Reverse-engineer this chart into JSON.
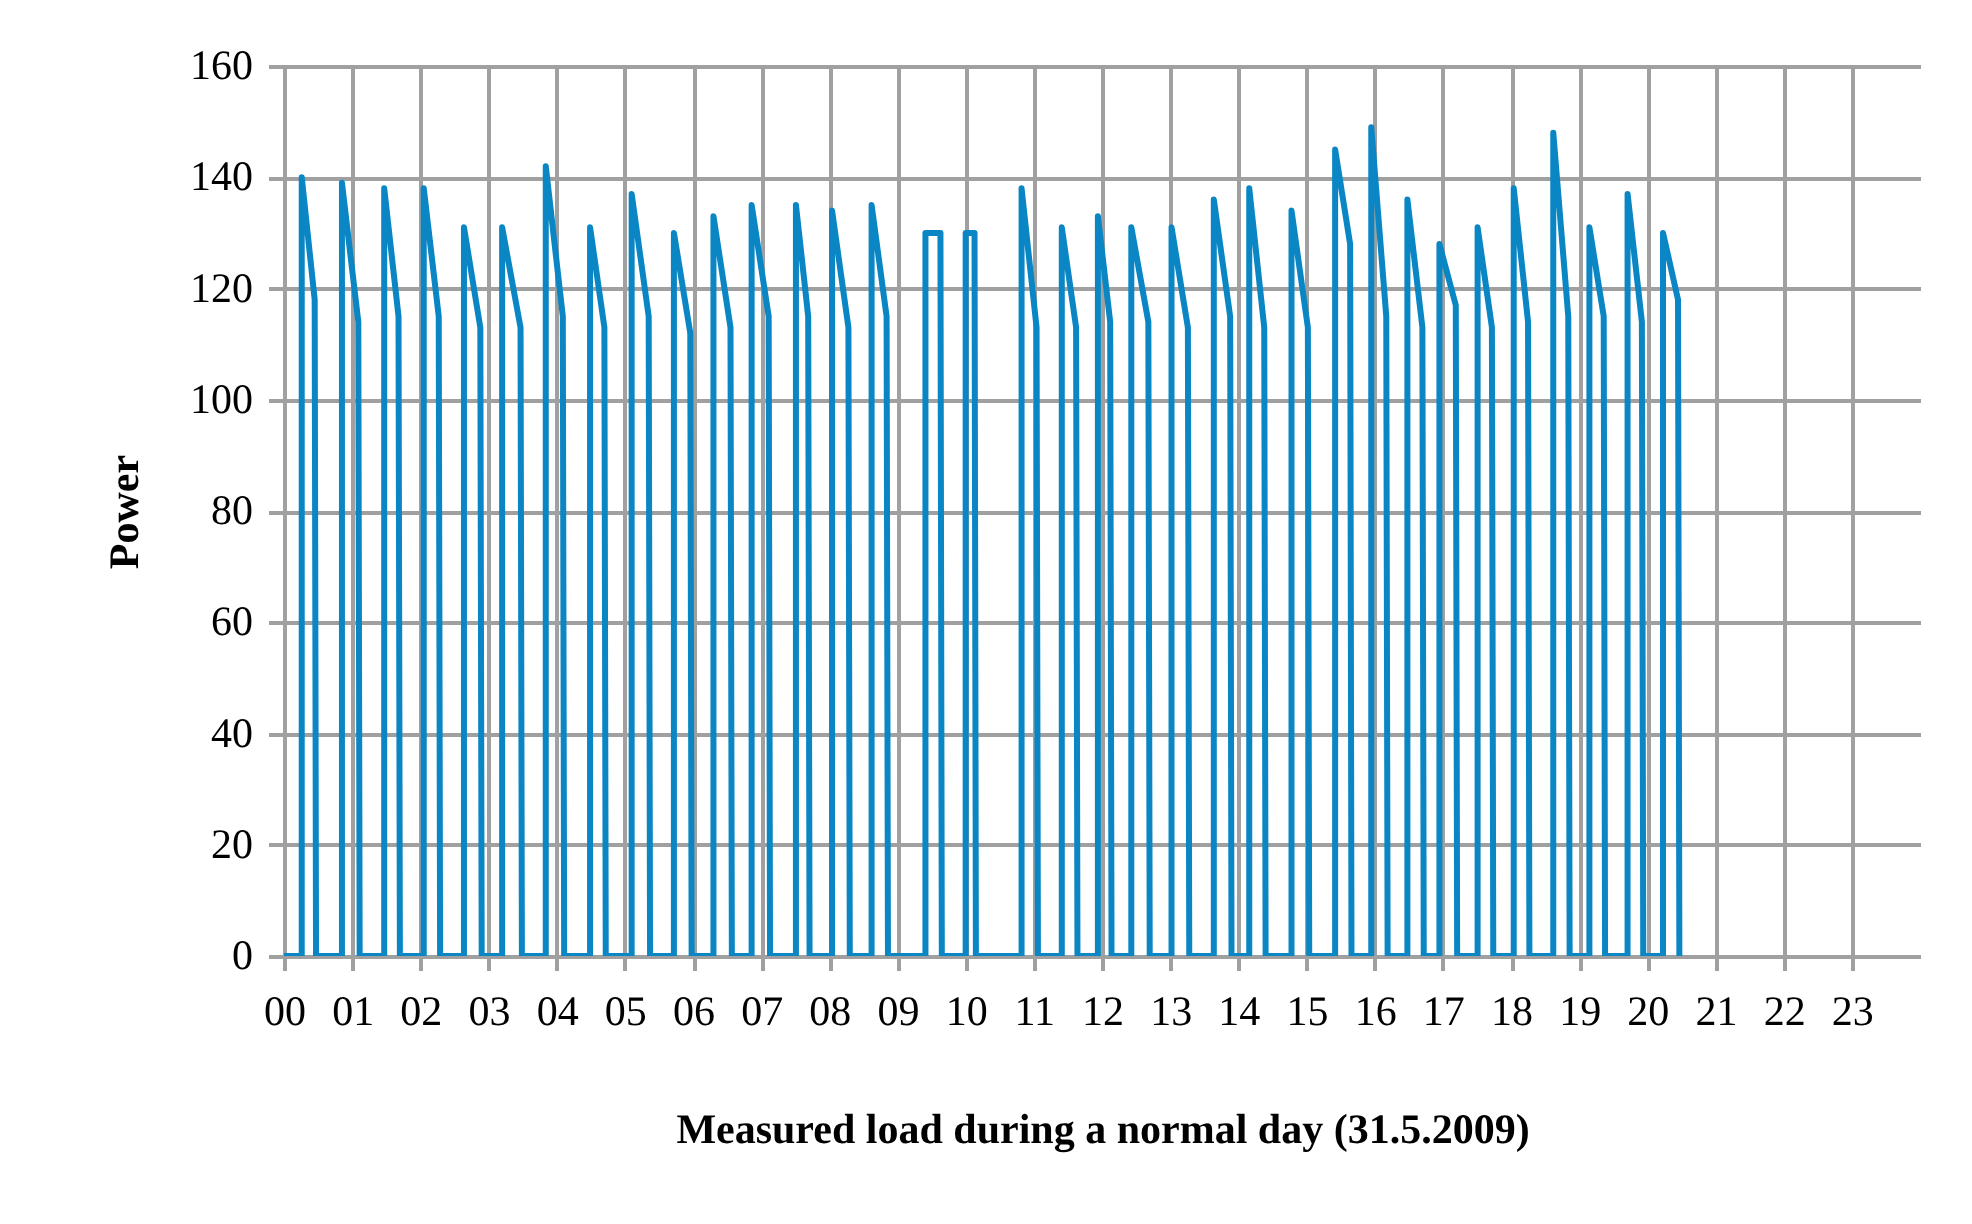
{
  "chart_data": {
    "type": "line",
    "xlabel": "Measured load during a normal day (31.5.2009)",
    "ylabel": "Power",
    "xlim": [
      0,
      24
    ],
    "xticks": [
      {
        "value": 0,
        "label": "00"
      },
      {
        "value": 1,
        "label": "01"
      },
      {
        "value": 2,
        "label": "02"
      },
      {
        "value": 3,
        "label": "03"
      },
      {
        "value": 4,
        "label": "04"
      },
      {
        "value": 5,
        "label": "05"
      },
      {
        "value": 6,
        "label": "06"
      },
      {
        "value": 7,
        "label": "07"
      },
      {
        "value": 8,
        "label": "08"
      },
      {
        "value": 9,
        "label": "09"
      },
      {
        "value": 10,
        "label": "10"
      },
      {
        "value": 11,
        "label": "11"
      },
      {
        "value": 12,
        "label": "12"
      },
      {
        "value": 13,
        "label": "13"
      },
      {
        "value": 14,
        "label": "14"
      },
      {
        "value": 15,
        "label": "15"
      },
      {
        "value": 16,
        "label": "16"
      },
      {
        "value": 17,
        "label": "17"
      },
      {
        "value": 18,
        "label": "18"
      },
      {
        "value": 19,
        "label": "19"
      },
      {
        "value": 20,
        "label": "20"
      },
      {
        "value": 21,
        "label": "21"
      },
      {
        "value": 22,
        "label": "22"
      },
      {
        "value": 23,
        "label": "23"
      }
    ],
    "ylim": [
      0,
      160
    ],
    "yticks": [
      0,
      20,
      40,
      60,
      80,
      100,
      120,
      140,
      160
    ],
    "grid": true,
    "series": [
      {
        "color": "#0a86c4",
        "x": [
          0,
          0.26,
          0.26,
          0.45,
          0.47,
          0.85,
          0.85,
          1.09,
          1.11,
          1.47,
          1.47,
          1.68,
          1.7,
          2.05,
          2.05,
          2.27,
          2.29,
          2.64,
          2.64,
          2.88,
          2.9,
          3.2,
          3.2,
          3.47,
          3.49,
          3.84,
          3.84,
          4.09,
          4.11,
          4.49,
          4.49,
          4.7,
          4.72,
          5.1,
          5.1,
          5.35,
          5.37,
          5.72,
          5.72,
          5.96,
          5.98,
          6.3,
          6.3,
          6.55,
          6.57,
          6.86,
          6.86,
          7.11,
          7.13,
          7.51,
          7.51,
          7.69,
          7.71,
          8.04,
          8.04,
          8.28,
          8.3,
          8.62,
          8.62,
          8.84,
          8.86,
          9.41,
          9.41,
          9.63,
          9.65,
          10.0,
          10.0,
          10.13,
          10.15,
          10.82,
          10.82,
          11.04,
          11.06,
          11.41,
          11.41,
          11.62,
          11.64,
          11.94,
          11.94,
          12.12,
          12.14,
          12.43,
          12.43,
          12.68,
          12.7,
          13.02,
          13.02,
          13.26,
          13.28,
          13.64,
          13.64,
          13.88,
          13.9,
          14.16,
          14.16,
          14.38,
          14.4,
          14.78,
          14.78,
          15.02,
          15.04,
          15.42,
          15.42,
          15.64,
          15.66,
          15.95,
          15.95,
          16.17,
          16.19,
          16.48,
          16.48,
          16.7,
          16.72,
          16.95,
          16.95,
          17.19,
          17.21,
          17.51,
          17.51,
          17.72,
          17.74,
          18.04,
          18.04,
          18.25,
          18.27,
          18.62,
          18.62,
          18.84,
          18.86,
          19.15,
          19.15,
          19.36,
          19.38,
          19.71,
          19.71,
          19.92,
          19.94,
          20.23,
          20.23,
          20.45,
          20.47
        ],
        "values": [
          0,
          0,
          140,
          118,
          0,
          0,
          139,
          114,
          0,
          0,
          138,
          115,
          0,
          0,
          138,
          115,
          0,
          0,
          131,
          113,
          0,
          0,
          131,
          113,
          0,
          0,
          142,
          115,
          0,
          0,
          131,
          113,
          0,
          0,
          137,
          115,
          0,
          0,
          130,
          112,
          0,
          0,
          133,
          113,
          0,
          0,
          135,
          115,
          0,
          0,
          135,
          115,
          0,
          0,
          134,
          113,
          0,
          0,
          135,
          115,
          0,
          0,
          130,
          130,
          0,
          0,
          130,
          130,
          0,
          0,
          138,
          113,
          0,
          0,
          131,
          113,
          0,
          0,
          133,
          114,
          0,
          0,
          131,
          114,
          0,
          0,
          131,
          113,
          0,
          0,
          136,
          115,
          0,
          0,
          138,
          113,
          0,
          0,
          134,
          113,
          0,
          0,
          145,
          128,
          0,
          0,
          149,
          115,
          0,
          0,
          136,
          113,
          0,
          0,
          128,
          117,
          0,
          0,
          131,
          113,
          0,
          0,
          138,
          114,
          0,
          0,
          148,
          115,
          0,
          0,
          131,
          115,
          0,
          0,
          137,
          114,
          0,
          0,
          130,
          118,
          0
        ]
      }
    ]
  }
}
